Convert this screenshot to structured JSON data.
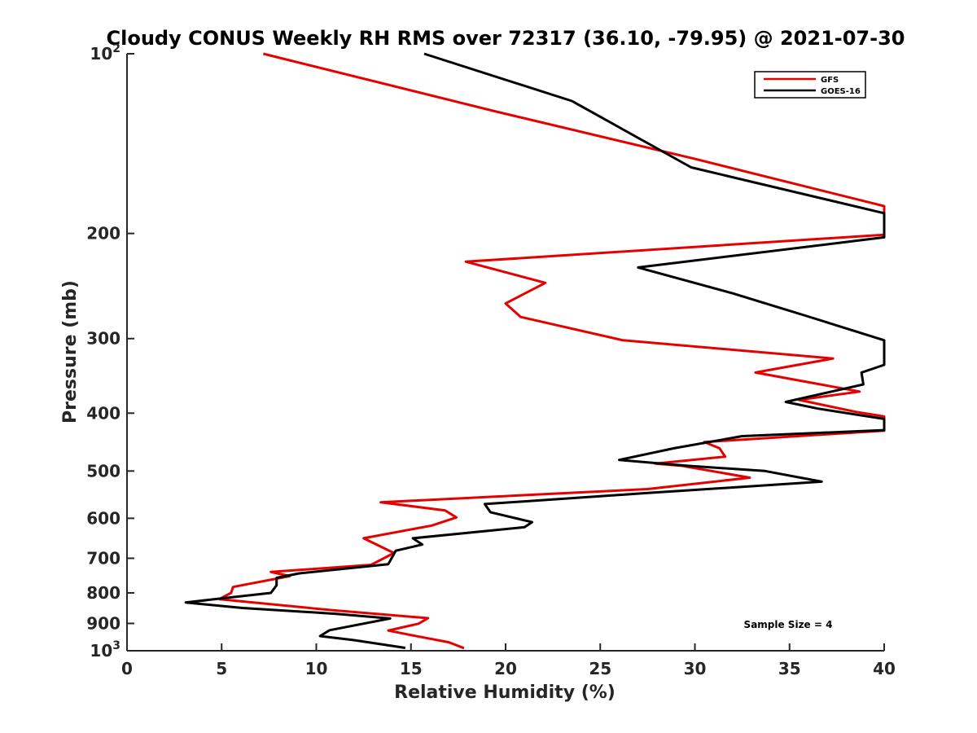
{
  "chart_data": {
    "type": "line",
    "title": "Cloudy CONUS Weekly RH RMS over 72317 (36.10, -79.95) @ 2021-07-30",
    "xlabel": "Relative Humidity (%)",
    "ylabel": "Pressure (mb)",
    "xlim": [
      0,
      40
    ],
    "ylim": [
      100,
      1000
    ],
    "y_scale": "log",
    "y_reversed": true,
    "grid": false,
    "legend_position": "top-right",
    "x_ticks": [
      "0",
      "5",
      "10",
      "15",
      "20",
      "25",
      "30",
      "35",
      "40"
    ],
    "y_ticks": [
      {
        "value": 100,
        "base": "10",
        "exp": "2"
      },
      {
        "value": 200,
        "label": "200"
      },
      {
        "value": 300,
        "label": "300"
      },
      {
        "value": 400,
        "label": "400"
      },
      {
        "value": 500,
        "label": "500"
      },
      {
        "value": 600,
        "label": "600"
      },
      {
        "value": 700,
        "label": "700"
      },
      {
        "value": 800,
        "label": "800"
      },
      {
        "value": 900,
        "label": "900"
      },
      {
        "value": 1000,
        "base": "10",
        "exp": "3"
      }
    ],
    "annotation": "Sample Size = 4",
    "series": [
      {
        "name": "GFS",
        "color": "#e60000",
        "points": [
          [
            7.2,
            100
          ],
          [
            19.5,
            125
          ],
          [
            30,
            150
          ],
          [
            40,
            180
          ],
          [
            40,
            201
          ],
          [
            17.9,
            223
          ],
          [
            22.1,
            242
          ],
          [
            20.0,
            262
          ],
          [
            20.8,
            276
          ],
          [
            26.2,
            302
          ],
          [
            37.3,
            324
          ],
          [
            33.2,
            342
          ],
          [
            38.7,
            368
          ],
          [
            35.5,
            380
          ],
          [
            38.5,
            398
          ],
          [
            40,
            405
          ],
          [
            40,
            428
          ],
          [
            30.5,
            447
          ],
          [
            31.3,
            458
          ],
          [
            31.6,
            473
          ],
          [
            27.9,
            486
          ],
          [
            29.3,
            490
          ],
          [
            32.9,
            513
          ],
          [
            27.5,
            536
          ],
          [
            13.4,
            564
          ],
          [
            16.8,
            582
          ],
          [
            17.4,
            598
          ],
          [
            16.1,
            617
          ],
          [
            12.5,
            648
          ],
          [
            14.1,
            686
          ],
          [
            12.9,
            718
          ],
          [
            7.6,
            738
          ],
          [
            8.6,
            750
          ],
          [
            5.6,
            782
          ],
          [
            5.5,
            800
          ],
          [
            5.0,
            815
          ],
          [
            4.9,
            820
          ],
          [
            10.8,
            855
          ],
          [
            15.9,
            882
          ],
          [
            15.4,
            901
          ],
          [
            13.8,
            925
          ],
          [
            14.9,
            940
          ],
          [
            17.0,
            968
          ],
          [
            17.8,
            990
          ]
        ]
      },
      {
        "name": "GOES-16",
        "color": "#000000",
        "points": [
          [
            15.7,
            100
          ],
          [
            23.5,
            120
          ],
          [
            29.8,
            155
          ],
          [
            40,
            185
          ],
          [
            40,
            203
          ],
          [
            27.0,
            228
          ],
          [
            32.0,
            252
          ],
          [
            35.9,
            275
          ],
          [
            40,
            302
          ],
          [
            40,
            332
          ],
          [
            38.8,
            342
          ],
          [
            38.9,
            358
          ],
          [
            34.8,
            383
          ],
          [
            36.5,
            393
          ],
          [
            40,
            409
          ],
          [
            40,
            427
          ],
          [
            32.5,
            437
          ],
          [
            28.9,
            458
          ],
          [
            26.0,
            479
          ],
          [
            29.6,
            490
          ],
          [
            33.7,
            500
          ],
          [
            36.7,
            521
          ],
          [
            27.2,
            545
          ],
          [
            18.9,
            568
          ],
          [
            19.2,
            586
          ],
          [
            21.4,
            609
          ],
          [
            21.0,
            621
          ],
          [
            15.1,
            648
          ],
          [
            15.6,
            664
          ],
          [
            14.2,
            680
          ],
          [
            13.8,
            716
          ],
          [
            9.1,
            742
          ],
          [
            7.9,
            755
          ],
          [
            7.9,
            777
          ],
          [
            7.6,
            800
          ],
          [
            3.1,
            830
          ],
          [
            6.1,
            848
          ],
          [
            11.0,
            867
          ],
          [
            13.9,
            883
          ],
          [
            10.7,
            924
          ],
          [
            10.2,
            945
          ],
          [
            12.0,
            960
          ],
          [
            14.7,
            989
          ]
        ]
      }
    ]
  }
}
